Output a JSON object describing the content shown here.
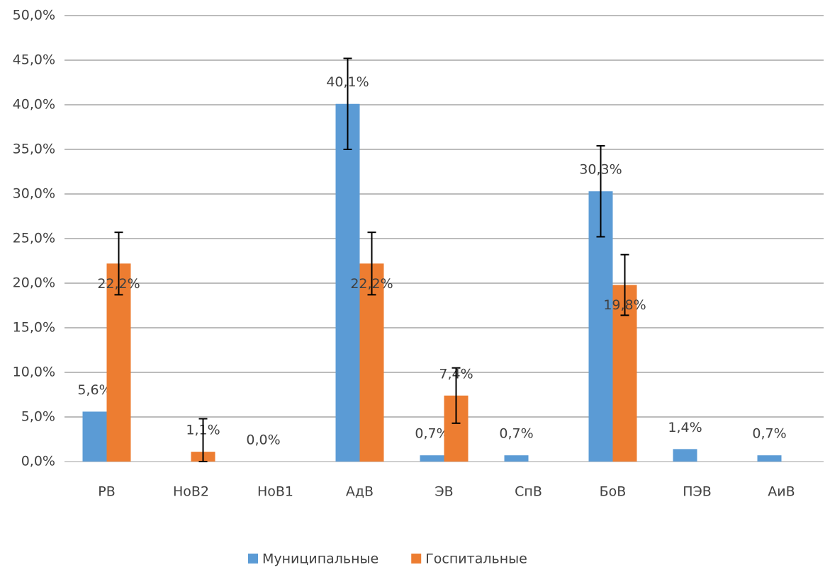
{
  "chart_data": {
    "type": "bar",
    "categories": [
      "РВ",
      "НоВ2",
      "НоВ1",
      "АдВ",
      "ЭВ",
      "СпВ",
      "БоВ",
      "ПЭВ",
      "АиВ"
    ],
    "series": [
      {
        "name": "Муниципальные",
        "color": "#5b9bd5",
        "values": [
          5.6,
          null,
          0,
          40.1,
          0.7,
          0.7,
          30.3,
          1.4,
          0.7
        ],
        "value_labels": [
          "5,6%",
          null,
          "0,0%",
          "40,1%",
          "0,7%",
          "0,7%",
          "30,3%",
          "1,4%",
          "0,7%"
        ],
        "errors": [
          null,
          null,
          null,
          5.1,
          null,
          null,
          5.1,
          null,
          null
        ]
      },
      {
        "name": "Госпитальные",
        "color": "#ed7d31",
        "values": [
          22.2,
          1.1,
          null,
          22.2,
          7.4,
          null,
          19.8,
          null,
          null
        ],
        "value_labels": [
          "22,2%",
          "1,1%",
          null,
          "22,2%",
          "7,4%",
          null,
          "19,8%",
          null,
          null
        ],
        "errors": [
          3.5,
          3.7,
          null,
          3.5,
          3.1,
          null,
          3.4,
          null,
          null
        ]
      }
    ],
    "ylim": [
      0,
      50
    ],
    "yticks": [
      {
        "value": 0,
        "label": "0,0%"
      },
      {
        "value": 5,
        "label": "5,0%"
      },
      {
        "value": 10,
        "label": "10,0%"
      },
      {
        "value": 15,
        "label": "15,0%"
      },
      {
        "value": 20,
        "label": "20,0%"
      },
      {
        "value": 25,
        "label": "25,0%"
      },
      {
        "value": 30,
        "label": "30,0%"
      },
      {
        "value": 35,
        "label": "35,0%"
      },
      {
        "value": 40,
        "label": "40,0%"
      },
      {
        "value": 45,
        "label": "45,0%"
      },
      {
        "value": 50,
        "label": "50,0%"
      }
    ],
    "grid": true,
    "legend": "bottom"
  }
}
